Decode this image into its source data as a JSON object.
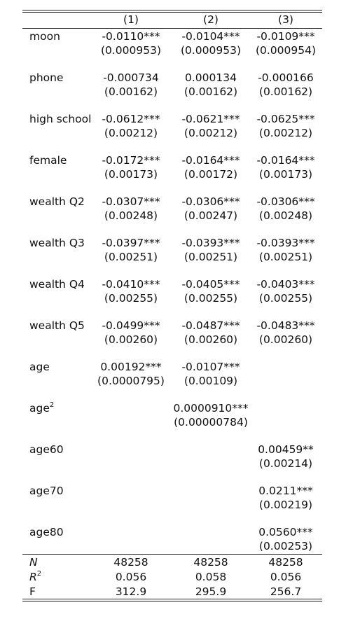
{
  "columns": [
    "(1)",
    "(2)",
    "(3)"
  ],
  "rows": [
    {
      "label": "moon",
      "coef": [
        "-0.0110***",
        "-0.0104***",
        "-0.0109***"
      ],
      "se": [
        "(0.000953)",
        "(0.000953)",
        "(0.000954)"
      ]
    },
    {
      "label": "phone",
      "coef": [
        "-0.000734",
        "0.000134",
        "-0.000166"
      ],
      "se": [
        "(0.00162)",
        "(0.00162)",
        "(0.00162)"
      ]
    },
    {
      "label": "high school",
      "coef": [
        "-0.0612***",
        "-0.0621***",
        "-0.0625***"
      ],
      "se": [
        "(0.00212)",
        "(0.00212)",
        "(0.00212)"
      ]
    },
    {
      "label": "female",
      "coef": [
        "-0.0172***",
        "-0.0164***",
        "-0.0164***"
      ],
      "se": [
        "(0.00173)",
        "(0.00172)",
        "(0.00173)"
      ]
    },
    {
      "label": "wealth Q2",
      "coef": [
        "-0.0307***",
        "-0.0306***",
        "-0.0306***"
      ],
      "se": [
        "(0.00248)",
        "(0.00247)",
        "(0.00248)"
      ]
    },
    {
      "label": "wealth Q3",
      "coef": [
        "-0.0397***",
        "-0.0393***",
        "-0.0393***"
      ],
      "se": [
        "(0.00251)",
        "(0.00251)",
        "(0.00251)"
      ]
    },
    {
      "label": "wealth Q4",
      "coef": [
        "-0.0410***",
        "-0.0405***",
        "-0.0403***"
      ],
      "se": [
        "(0.00255)",
        "(0.00255)",
        "(0.00255)"
      ]
    },
    {
      "label": "wealth Q5",
      "coef": [
        "-0.0499***",
        "-0.0487***",
        "-0.0483***"
      ],
      "se": [
        "(0.00260)",
        "(0.00260)",
        "(0.00260)"
      ]
    },
    {
      "label": "age",
      "coef": [
        "0.00192***",
        "-0.0107***",
        ""
      ],
      "se": [
        "(0.0000795)",
        "(0.00109)",
        ""
      ]
    },
    {
      "label": "age",
      "label_sup": "2",
      "coef": [
        "",
        "0.0000910***",
        ""
      ],
      "se": [
        "",
        "(0.00000784)",
        ""
      ]
    },
    {
      "label": "age60",
      "coef": [
        "",
        "",
        "0.00459**"
      ],
      "se": [
        "",
        "",
        "(0.00214)"
      ]
    },
    {
      "label": "age70",
      "coef": [
        "",
        "",
        "0.0211***"
      ],
      "se": [
        "",
        "",
        "(0.00219)"
      ]
    },
    {
      "label": "age80",
      "coef": [
        "",
        "",
        "0.0560***"
      ],
      "se": [
        "",
        "",
        "(0.00253)"
      ]
    }
  ],
  "stats": [
    {
      "label": "N",
      "italic": true,
      "values": [
        "48258",
        "48258",
        "48258"
      ]
    },
    {
      "label": "R",
      "label_sup": "2",
      "italic": true,
      "values": [
        "0.056",
        "0.058",
        "0.056"
      ]
    },
    {
      "label": "F",
      "values": [
        "312.9",
        "295.9",
        "256.7"
      ]
    }
  ]
}
